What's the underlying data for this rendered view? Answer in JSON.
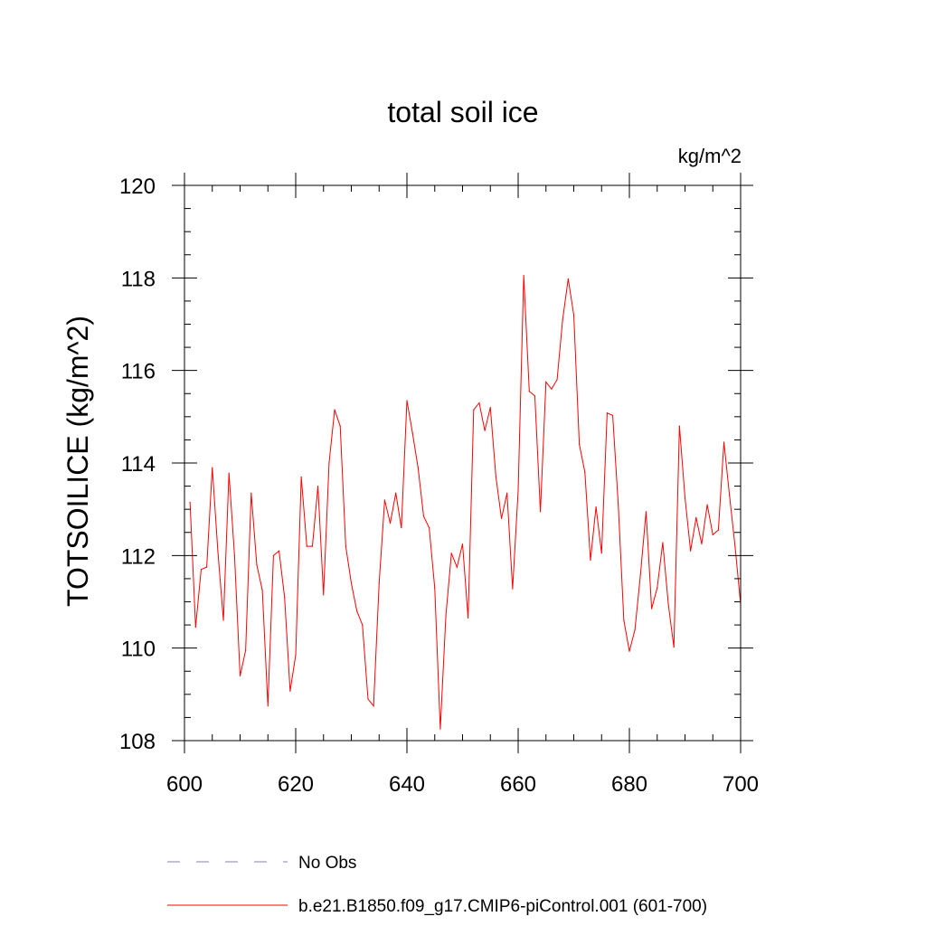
{
  "chart_data": {
    "type": "line",
    "title": "total soil ice",
    "units_label": "kg/m^2",
    "ylabel": "TOTSOILICE  (kg/m^2)",
    "xlabel": "",
    "xlim": [
      600,
      700
    ],
    "ylim": [
      108,
      120
    ],
    "x_ticks": [
      600,
      620,
      640,
      660,
      680,
      700
    ],
    "x_minor_step": 5,
    "y_ticks": [
      108,
      110,
      112,
      114,
      116,
      118,
      120
    ],
    "y_minor_step": 0.5,
    "grid": false,
    "legend_position": "bottom",
    "series": [
      {
        "name": "No Obs",
        "color": "#8080c0",
        "dash": "dashed",
        "x": [],
        "values": []
      },
      {
        "name": "b.e21.B1850.f09_g17.CMIP6-piControl.001 (601-700)",
        "color": "#ff0000",
        "dash": "solid",
        "x": [
          601,
          602,
          603,
          604,
          605,
          606,
          607,
          608,
          609,
          610,
          611,
          612,
          613,
          614,
          615,
          616,
          617,
          618,
          619,
          620,
          621,
          622,
          623,
          624,
          625,
          626,
          627,
          628,
          629,
          630,
          631,
          632,
          633,
          634,
          635,
          636,
          637,
          638,
          639,
          640,
          641,
          642,
          643,
          644,
          645,
          646,
          647,
          648,
          649,
          650,
          651,
          652,
          653,
          654,
          655,
          656,
          657,
          658,
          659,
          660,
          661,
          662,
          663,
          664,
          665,
          666,
          667,
          668,
          669,
          670,
          671,
          672,
          673,
          674,
          675,
          676,
          677,
          678,
          679,
          680,
          681,
          682,
          683,
          684,
          685,
          686,
          687,
          688,
          689,
          690,
          691,
          692,
          693,
          694,
          695,
          696,
          697,
          698,
          699,
          700
        ],
        "values": [
          113.15,
          110.45,
          111.7,
          111.75,
          113.9,
          112.1,
          110.6,
          113.78,
          112.0,
          109.4,
          109.95,
          113.35,
          111.8,
          111.25,
          108.75,
          112.0,
          112.1,
          111.1,
          109.07,
          109.85,
          113.7,
          112.2,
          112.2,
          113.5,
          111.15,
          114.0,
          115.15,
          114.8,
          112.2,
          111.4,
          110.8,
          110.5,
          108.9,
          108.75,
          111.4,
          113.2,
          112.7,
          113.35,
          112.6,
          115.35,
          114.65,
          113.9,
          112.85,
          112.6,
          111.3,
          108.25,
          110.7,
          112.05,
          111.75,
          112.25,
          110.65,
          115.15,
          115.3,
          114.7,
          115.2,
          113.7,
          112.8,
          113.35,
          111.28,
          113.4,
          118.05,
          115.55,
          115.45,
          112.95,
          115.75,
          115.6,
          115.8,
          117.1,
          117.98,
          117.2,
          114.4,
          113.8,
          111.9,
          113.05,
          112.05,
          115.08,
          115.03,
          113.1,
          110.6,
          109.93,
          110.4,
          111.6,
          112.95,
          110.85,
          111.3,
          112.28,
          110.95,
          110.02,
          114.8,
          113.25,
          112.1,
          112.82,
          112.25,
          113.1,
          112.45,
          112.55,
          114.45,
          113.3,
          112.2,
          110.95
        ]
      }
    ]
  }
}
